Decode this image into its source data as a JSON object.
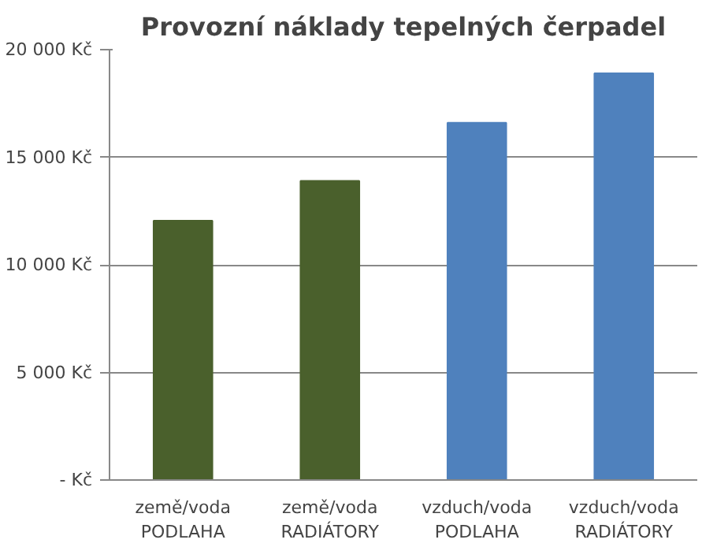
{
  "chart_data": {
    "type": "bar",
    "title": "Provozní náklady tepelných čerpadel",
    "categories": [
      "země/voda\nPODLAHA",
      "země/voda\nRADIÁTORY",
      "vzduch/voda\nPODLAHA",
      "vzduch/voda\nRADIÁTORY"
    ],
    "values": [
      12050,
      13900,
      16600,
      18900
    ],
    "colors": [
      "#4a602c",
      "#4a602c",
      "#4f81bd",
      "#4f81bd"
    ],
    "ylim": [
      0,
      20000
    ],
    "yticks": [
      {
        "value": 0,
        "label": "- Kč"
      },
      {
        "value": 5000,
        "label": "5 000 Kč"
      },
      {
        "value": 10000,
        "label": "10 000 Kč"
      },
      {
        "value": 15000,
        "label": "15 000 Kč"
      },
      {
        "value": 20000,
        "label": "20 000 Kč"
      }
    ],
    "grid": "y"
  }
}
